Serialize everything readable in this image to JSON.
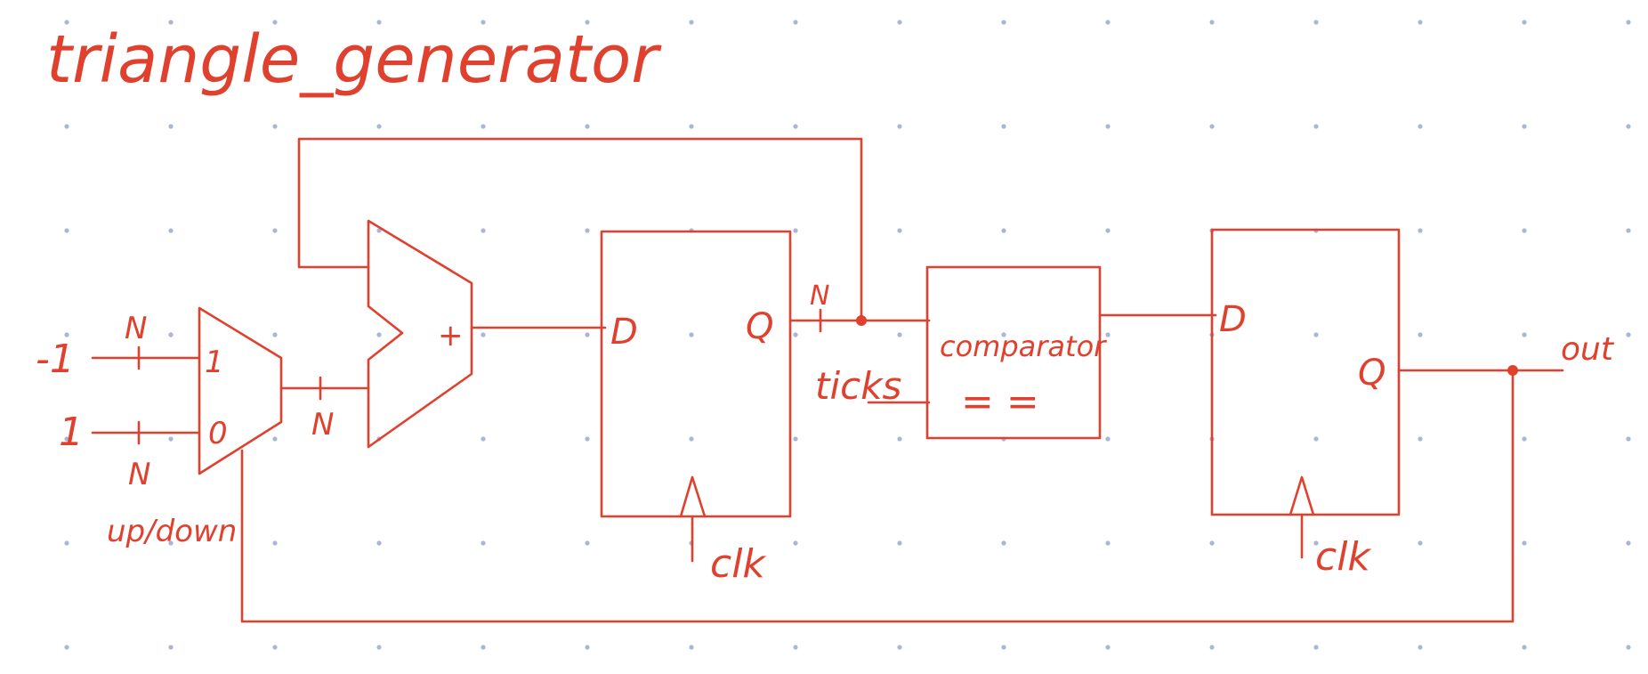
{
  "diagram": {
    "title": "triangle_generator",
    "colors": {
      "ink": "#e0412e",
      "grid_dot": "#a9b6d4",
      "background": "#ffffff"
    },
    "inputs": {
      "minus_one": "-1",
      "one": "1"
    },
    "bus_labels": {
      "width": "N"
    },
    "mux": {
      "input_1": "1",
      "input_0": "0",
      "select_label": "up/down"
    },
    "adder": {
      "symbol": "+"
    },
    "counter_register": {
      "d_label": "D",
      "q_label": "Q",
      "clock_label": "clk",
      "output_label": "ticks"
    },
    "comparator": {
      "name": "comparator",
      "operator": "= ="
    },
    "output_register": {
      "d_label": "D",
      "q_label": "Q",
      "clock_label": "clk"
    },
    "output": {
      "label": "out"
    }
  }
}
